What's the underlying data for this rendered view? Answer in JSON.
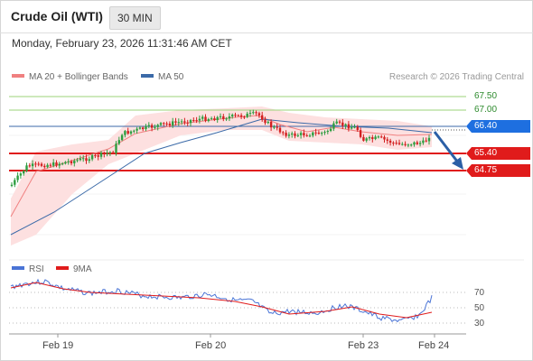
{
  "header": {
    "title": "Crude Oil (WTI)",
    "timeframe": "30 MIN"
  },
  "timestamp": "Monday, February 23, 2026 11:31:46 AM CET",
  "legend": {
    "ma20": "MA 20 + Bollinger Bands",
    "ma50": "MA 50"
  },
  "credit": "Research © 2026 Trading Central",
  "levels": {
    "r2": "67.50",
    "r1": "67.00",
    "pivot": "66.40",
    "s1": "65.40",
    "s2": "64.75"
  },
  "colors": {
    "candle_up": "#2e9e41",
    "candle_down": "#d32020",
    "ma20": "#f08080",
    "ma50": "#3b6aa8",
    "bollinger": "#fde0e0",
    "pivot_badge": "#1e6fe0",
    "support_badge": "#e01b1b",
    "resistance_line": "#9bd37a",
    "rsi": "#4a74d6",
    "rsi_ma": "#e01b1b",
    "arrow": "#2b5fa6"
  },
  "rsi_panel": {
    "legend_rsi": "RSI",
    "legend_ma": "9MA",
    "levels": [
      "70",
      "50",
      "30"
    ]
  },
  "x_axis": [
    "Feb 19",
    "Feb 20",
    "Feb 23",
    "Feb 24"
  ],
  "chart_data": {
    "type": "line",
    "x": [
      "Feb 19",
      "Feb 20",
      "Feb 23",
      "Feb 24"
    ],
    "price_series": [
      {
        "name": "MA 20 + Bollinger Bands"
      },
      {
        "name": "MA 50"
      }
    ],
    "key_levels": [
      67.5,
      67.0,
      66.4,
      65.4,
      64.75
    ],
    "pivot": 66.4,
    "forecast": "down toward 65.40 / 64.75",
    "rsi_levels": [
      70,
      50,
      30
    ]
  }
}
